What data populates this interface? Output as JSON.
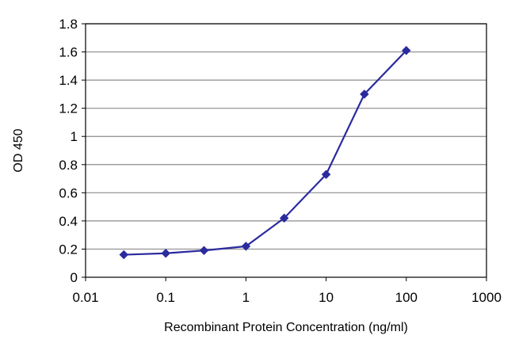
{
  "chart_data": {
    "type": "line",
    "xlabel": "Recombinant Protein Concentration (ng/ml)",
    "ylabel": "OD 450",
    "x_scale": "log",
    "xlim": [
      0.01,
      1000
    ],
    "ylim": [
      0,
      1.8
    ],
    "x_ticks": [
      "0.01",
      "0.1",
      "1",
      "10",
      "100",
      "1000"
    ],
    "y_ticks": [
      "0",
      "0.2",
      "0.4",
      "0.6",
      "0.8",
      "1",
      "1.2",
      "1.4",
      "1.6",
      "1.8"
    ],
    "grid": "horizontal",
    "legend": "none",
    "series": [
      {
        "x": [
          0.03,
          0.1,
          0.3,
          1,
          3,
          10,
          30,
          100
        ],
        "y": [
          0.16,
          0.17,
          0.19,
          0.22,
          0.42,
          0.73,
          1.3,
          1.61
        ]
      }
    ]
  },
  "colors": {
    "series": "#2b2b9e",
    "grid": "#8c8c8c",
    "frame": "#000000"
  }
}
